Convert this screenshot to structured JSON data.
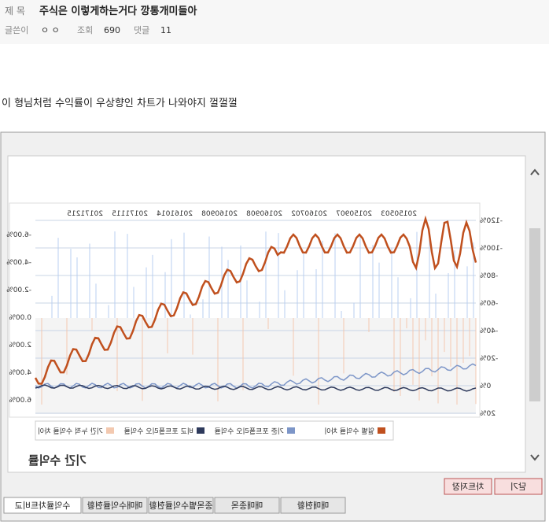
{
  "post": {
    "title_label": "제 목",
    "title": "주식은 이렇게하는거다 깡통개미들아",
    "author_label": "글쓴이",
    "author": "ㅇ ㅇ",
    "views_label": "조회",
    "views": "690",
    "comments_label": "댓글",
    "comments": "11",
    "body": "이 형님처럼 수익률이 우상향인 차트가 나와야지 껄껄껄"
  },
  "window": {
    "chart_title": "기간 수익률",
    "dates": [
      "20150503",
      "20150907",
      "20160702",
      "20160908",
      "20160908",
      "20161014",
      "20171115",
      "20171215"
    ],
    "left_ticks": [
      "-120%",
      "-100%",
      "-80%",
      "-60%",
      "-40%",
      "-20%",
      "0%",
      "20%"
    ],
    "right_ticks": [
      "-6.00%",
      "-4.00%",
      "-2.00%",
      "0.00%",
      "2.00%",
      "4.00%",
      "6.00%"
    ],
    "legend": [
      "일별 수익률 차이",
      "기준 포트폴리오 수익률",
      "비교 포트폴리오 수익률",
      "기간 누적 수익률 차이"
    ],
    "buttons": [
      "차트저장",
      "닫기"
    ],
    "tabs": [
      "수익률차트비교",
      "매매수익률현황",
      "종목별수익률현황",
      "매매종목",
      "매매현황"
    ]
  }
}
